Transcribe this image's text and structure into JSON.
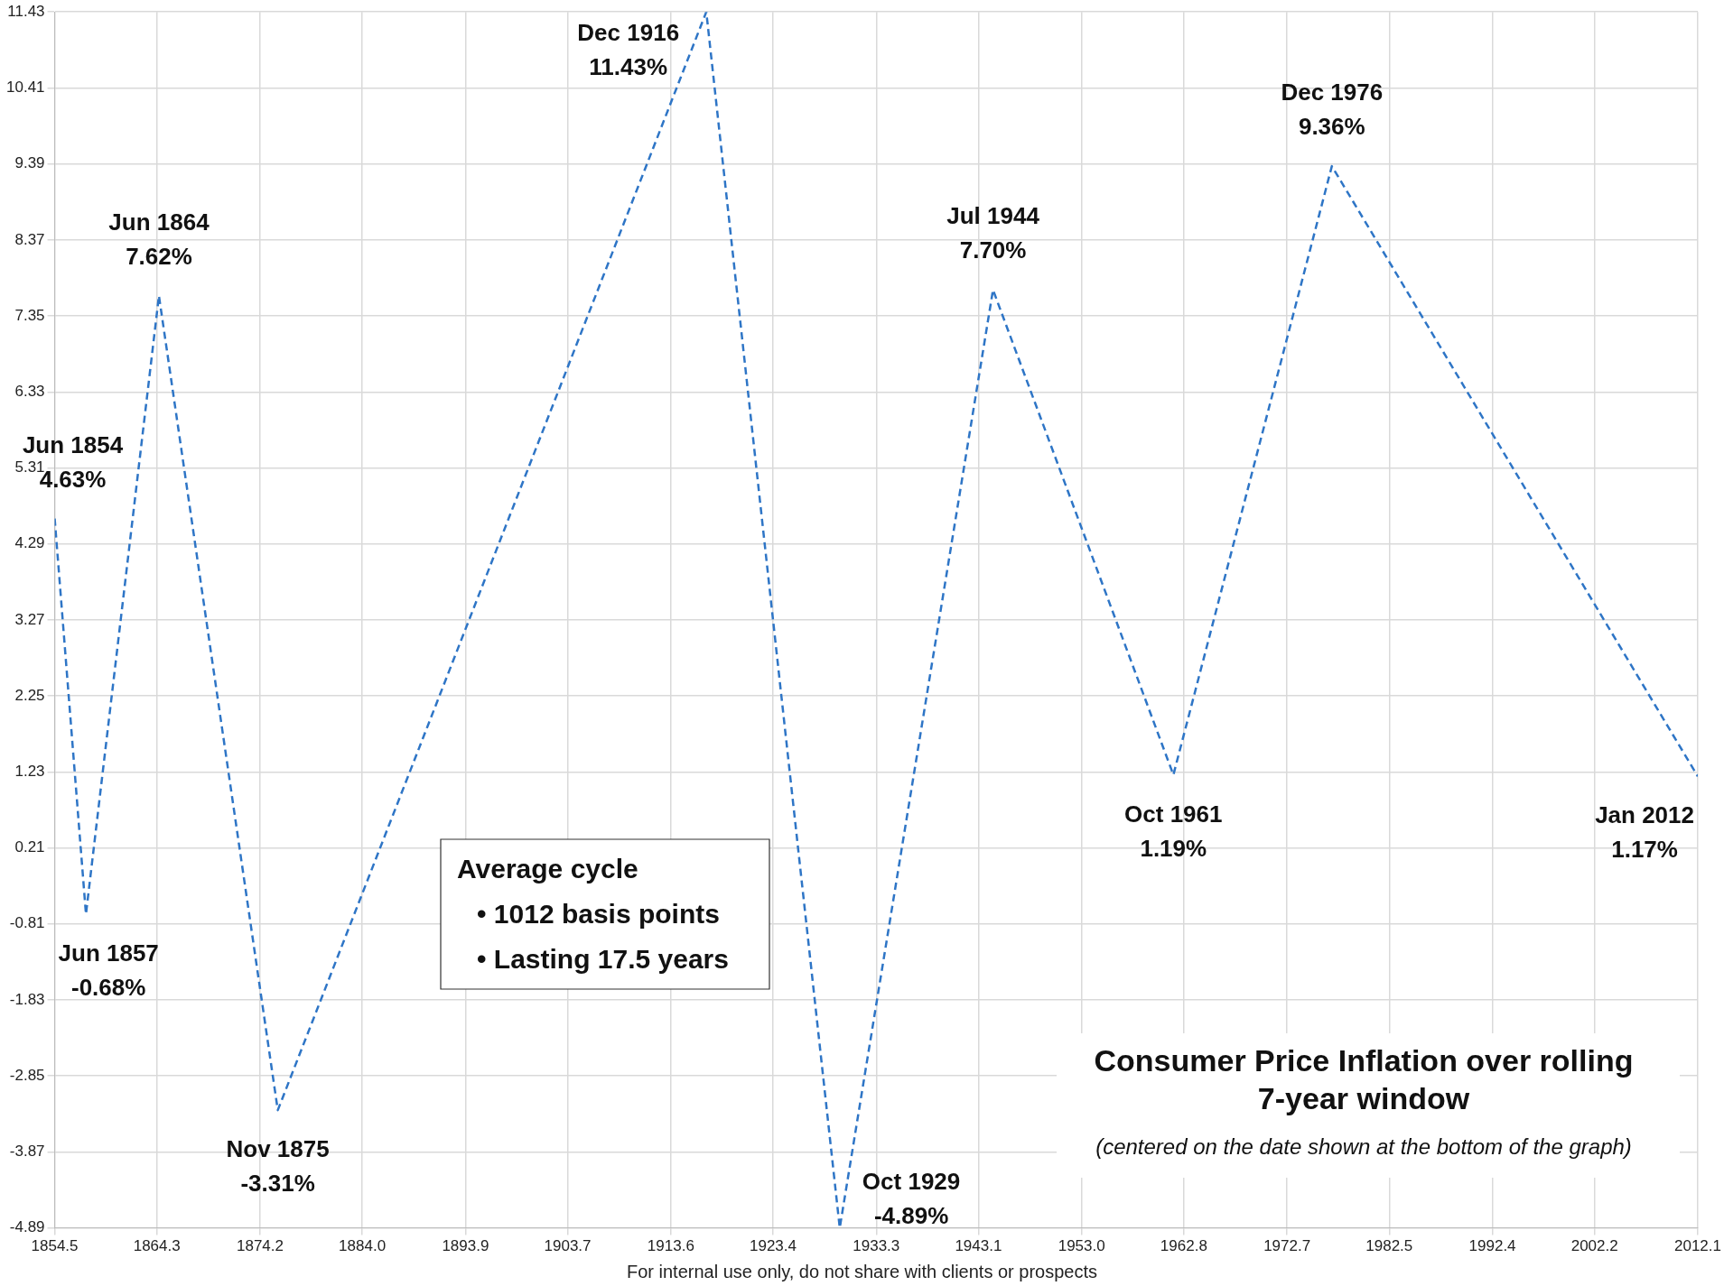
{
  "chart_data": {
    "type": "line",
    "title": "Consumer Price Inflation over rolling 7-year window",
    "subtitle": "(centered on the date shown at the bottom of the graph)",
    "x": [
      1854.5,
      1857.5,
      1864.5,
      1875.9,
      1917.0,
      1929.8,
      1944.5,
      1961.8,
      1977.0,
      2012.1
    ],
    "series": [
      {
        "color": "#2e75c6",
        "values": [
          4.63,
          -0.68,
          7.62,
          -3.31,
          11.43,
          -4.89,
          7.7,
          1.19,
          9.36,
          1.17
        ]
      }
    ],
    "xlim": [
      1854.5,
      2012.1
    ],
    "xticks": [
      {
        "value": 1854.5,
        "label": "1854.5"
      },
      {
        "value": 1864.3,
        "label": "1864.3"
      },
      {
        "value": 1874.2,
        "label": "1874.2"
      },
      {
        "value": 1884.0,
        "label": "1884.0"
      },
      {
        "value": 1893.9,
        "label": "1893.9"
      },
      {
        "value": 1903.7,
        "label": "1903.7"
      },
      {
        "value": 1913.6,
        "label": "1913.6"
      },
      {
        "value": 1923.4,
        "label": "1923.4"
      },
      {
        "value": 1933.3,
        "label": "1933.3"
      },
      {
        "value": 1943.1,
        "label": "1943.1"
      },
      {
        "value": 1953.0,
        "label": "1953.0"
      },
      {
        "value": 1962.8,
        "label": "1962.8"
      },
      {
        "value": 1972.7,
        "label": "1972.7"
      },
      {
        "value": 1982.5,
        "label": "1982.5"
      },
      {
        "value": 1992.4,
        "label": "1992.4"
      },
      {
        "value": 2002.2,
        "label": "2002.2"
      },
      {
        "value": 2012.1,
        "label": "2012.1"
      }
    ],
    "ylim": [
      -4.89,
      11.43
    ],
    "yticks": [
      -4.89,
      -3.87,
      -2.85,
      -1.83,
      -0.81,
      0.21,
      1.23,
      2.25,
      3.27,
      4.29,
      5.31,
      6.33,
      7.35,
      8.37,
      9.39,
      10.41,
      11.43
    ],
    "grid": true,
    "legend": false,
    "marker": "none",
    "line_style": "dashed",
    "annotations": [
      "Average cycle\n• 1012 basis points\n• Lasting 17.5 years",
      "For internal use only, do not share with clients or prospects",
      {
        "text": "Jun 1854\n4.63%",
        "x": 1854.5,
        "y": 4.63
      },
      {
        "text": "Jun 1857\n-0.68%",
        "x": 1857.5,
        "y": -0.68
      },
      {
        "text": "Jun 1864\n7.62%",
        "x": 1864.5,
        "y": 7.62
      },
      {
        "text": "Nov 1875\n-3.31%",
        "x": 1875.9,
        "y": -3.31
      },
      {
        "text": "Dec 1916\n11.43%",
        "x": 1917.0,
        "y": 11.43
      },
      {
        "text": "Oct 1929\n-4.89%",
        "x": 1929.8,
        "y": -4.89
      },
      {
        "text": "Jul 1944\n7.70%",
        "x": 1944.5,
        "y": 7.7
      },
      {
        "text": "Oct 1961\n1.19%",
        "x": 1961.8,
        "y": 1.19
      },
      {
        "text": "Dec 1976\n9.36%",
        "x": 1977.0,
        "y": 9.36
      },
      {
        "text": "Jan 2012\n1.17%",
        "x": 2012.1,
        "y": 1.17
      }
    ]
  }
}
